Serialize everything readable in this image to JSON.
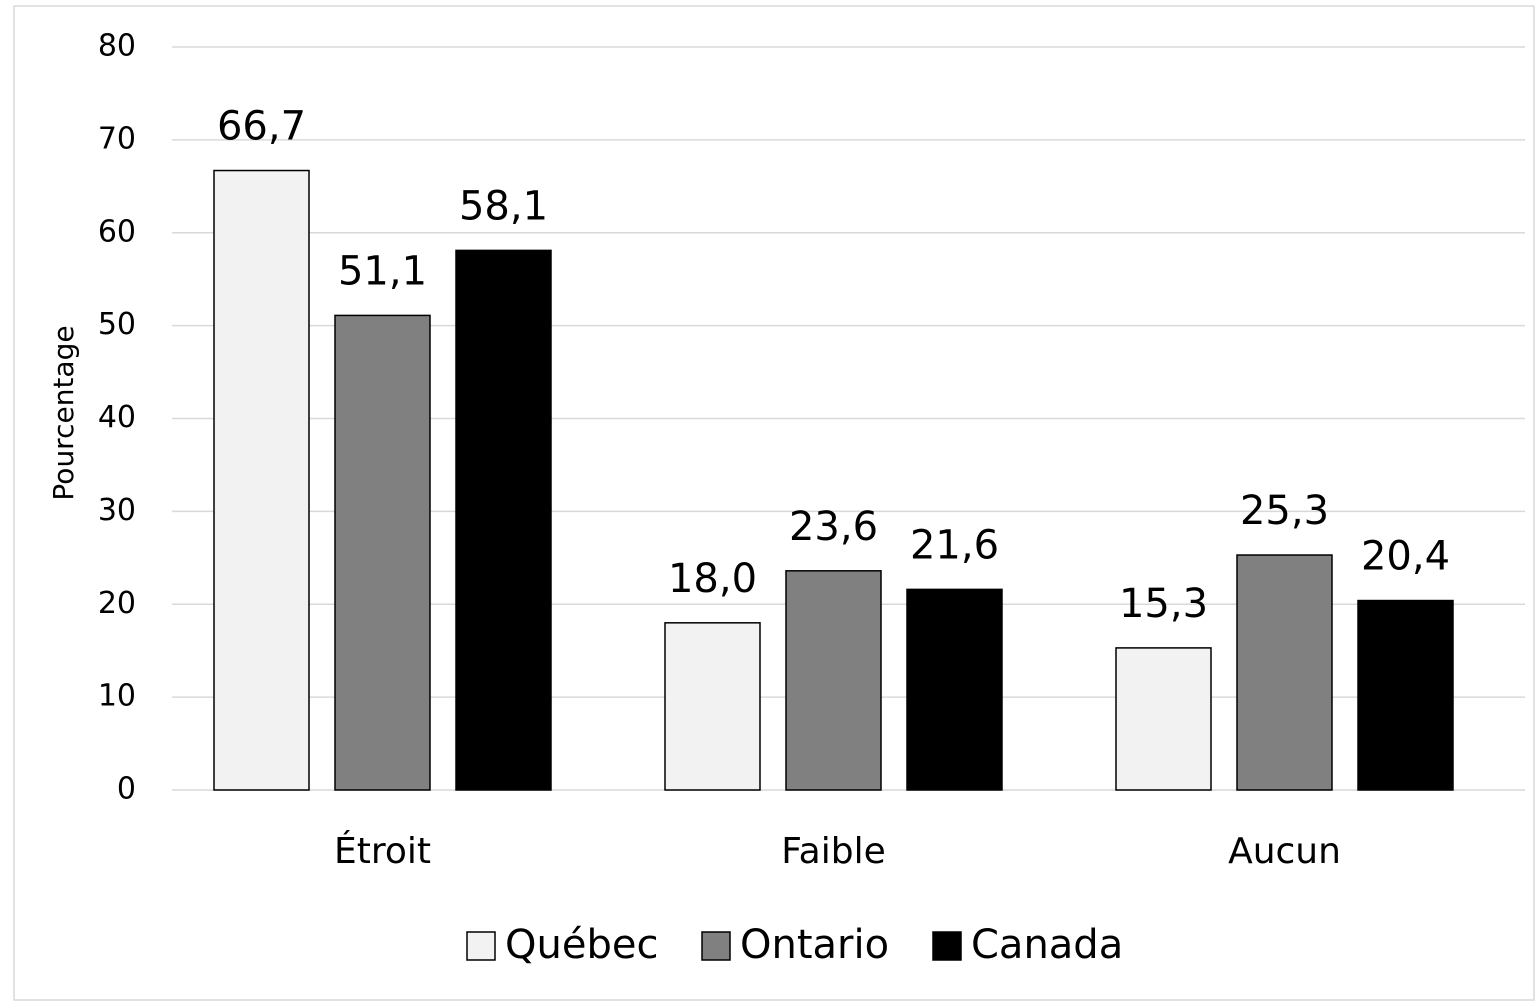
{
  "chart_data": {
    "type": "bar",
    "y_label": "Pourcentage",
    "categories": [
      "Étroit",
      "Faible",
      "Aucun"
    ],
    "series": [
      {
        "name": "Québec",
        "color": "#f2f2f2",
        "values": [
          66.7,
          18.0,
          15.3
        ],
        "value_labels": [
          "66,7",
          "18,0",
          "15,3"
        ]
      },
      {
        "name": "Ontario",
        "color": "#808080",
        "values": [
          51.1,
          23.6,
          25.3
        ],
        "value_labels": [
          "51,1",
          "23,6",
          "25,3"
        ]
      },
      {
        "name": "Canada",
        "color": "#000000",
        "values": [
          58.1,
          21.6,
          20.4
        ],
        "value_labels": [
          "58,1",
          "21,6",
          "20,4"
        ]
      }
    ],
    "ylim": [
      0,
      80
    ],
    "yticks": [
      0,
      10,
      20,
      30,
      40,
      50,
      60,
      70,
      80
    ],
    "grid": true,
    "legend": "bottom"
  }
}
